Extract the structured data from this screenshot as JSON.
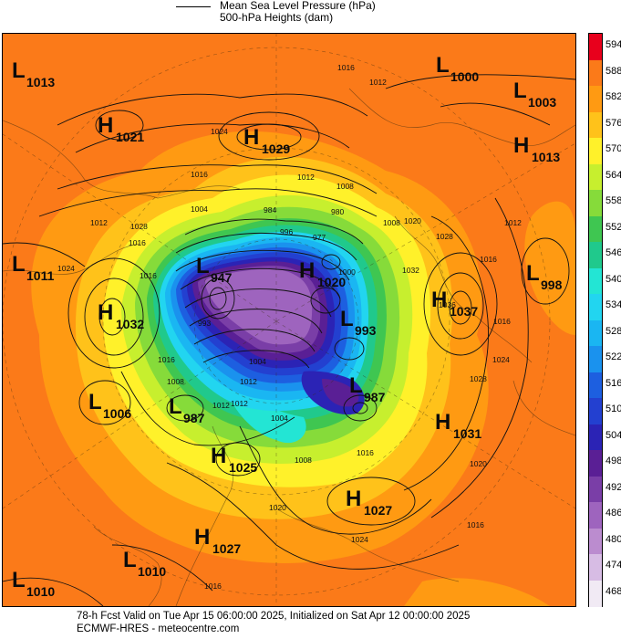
{
  "header": {
    "line1": "Mean Sea Level Pressure (hPa)",
    "line2": "500-hPa Heights (dam)"
  },
  "footer": {
    "line1": "78-h Fcst Valid on Tue Apr 15 06:00:00 2025, Initialized on Sat Apr 12 00:00:00 2025",
    "line2": "ECMWF-HRES  - meteocentre.com"
  },
  "colorbar": {
    "labels": [
      "594",
      "588",
      "582",
      "576",
      "570",
      "564",
      "558",
      "552",
      "546",
      "540",
      "534",
      "528",
      "522",
      "516",
      "510",
      "504",
      "498",
      "492",
      "486",
      "480",
      "474",
      "468"
    ],
    "colors": [
      "#e8001c",
      "#fb7a19",
      "#ff9a12",
      "#ffc21a",
      "#fff12a",
      "#c7ef2e",
      "#86db3a",
      "#3fc651",
      "#20c98c",
      "#23e5d4",
      "#22d5f0",
      "#1ab6f2",
      "#1a92ee",
      "#1d5fe0",
      "#2340d0",
      "#2b23b5",
      "#5a1f95",
      "#7a3ea7",
      "#9e64be",
      "#bb8ccf",
      "#d7bce4",
      "#f1eaf4"
    ]
  },
  "map": {
    "pressure_centers": [
      {
        "type": "L",
        "value": "1013"
      },
      {
        "type": "H",
        "value": "1021"
      },
      {
        "type": "H",
        "value": "1029"
      },
      {
        "type": "L",
        "value": "1000"
      },
      {
        "type": "L",
        "value": "1003"
      },
      {
        "type": "H",
        "value": "1013"
      },
      {
        "type": "L",
        "value": "1011"
      },
      {
        "type": "H",
        "value": "1032"
      },
      {
        "type": "L",
        "value": "947"
      },
      {
        "type": "H",
        "value": "1020"
      },
      {
        "type": "L",
        "value": "998"
      },
      {
        "type": "H",
        "value": "1037"
      },
      {
        "type": "L",
        "value": "993"
      },
      {
        "type": "L",
        "value": "987"
      },
      {
        "type": "L",
        "value": "1006"
      },
      {
        "type": "L",
        "value": "987"
      },
      {
        "type": "H",
        "value": "1031"
      },
      {
        "type": "H",
        "value": "1025"
      },
      {
        "type": "H",
        "value": "1027"
      },
      {
        "type": "H",
        "value": "1027"
      },
      {
        "type": "L",
        "value": "1010"
      },
      {
        "type": "L",
        "value": "1010"
      }
    ],
    "isobar_labels": [
      "1016",
      "1012",
      "1024",
      "1016",
      "1012",
      "1008",
      "1008",
      "1028",
      "1016",
      "1012",
      "1016",
      "1028",
      "1024",
      "1020",
      "1016",
      "1012",
      "1016",
      "1020",
      "1024",
      "1016",
      "1004",
      "1008",
      "1012",
      "1016",
      "1020",
      "1024",
      "1028",
      "1032",
      "1036",
      "1016",
      "1016",
      "984",
      "1004",
      "996",
      "977",
      "980",
      "993",
      "1008",
      "1012",
      "1004",
      "1012",
      "1000"
    ]
  }
}
